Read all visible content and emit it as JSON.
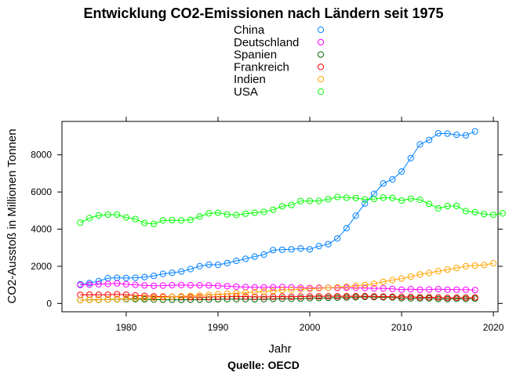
{
  "chart_data": {
    "type": "line",
    "title": "Entwicklung CO2-Emissionen nach Ländern seit 1975",
    "xlabel": "Jahr",
    "ylabel": "CO2-Ausstoß in Millionen Tonnen",
    "caption": "Quelle: OECD",
    "xlim": [
      1973,
      2020.5
    ],
    "ylim": [
      -450,
      9800
    ],
    "x_ticks": [
      1980,
      1990,
      2000,
      2010,
      2020
    ],
    "y_ticks": [
      0,
      2000,
      4000,
      6000,
      8000
    ],
    "x_start": 1975,
    "legend_position": "top-center",
    "grid": false,
    "series": [
      {
        "name": "China",
        "color": "#0080ff",
        "values": [
          1030,
          1100,
          1200,
          1360,
          1380,
          1370,
          1380,
          1420,
          1480,
          1590,
          1650,
          1720,
          1850,
          2000,
          2090,
          2080,
          2170,
          2290,
          2400,
          2520,
          2630,
          2870,
          2890,
          2910,
          2960,
          2910,
          3090,
          3190,
          3500,
          4050,
          4720,
          5380,
          5900,
          6460,
          6680,
          7100,
          7820,
          8560,
          8800,
          9160,
          9140,
          9080,
          9050,
          9260
        ]
      },
      {
        "name": "Deutschland",
        "color": "#ff00ff",
        "values": [
          990,
          1010,
          1030,
          1050,
          1080,
          1030,
          1000,
          970,
          950,
          960,
          980,
          990,
          980,
          980,
          970,
          950,
          930,
          900,
          880,
          860,
          860,
          870,
          880,
          860,
          840,
          830,
          840,
          840,
          830,
          840,
          840,
          820,
          810,
          810,
          780,
          740,
          770,
          740,
          750,
          770,
          740,
          740,
          740,
          720
        ]
      },
      {
        "name": "Spanien",
        "color": "#006400",
        "values": [
          180,
          190,
          200,
          210,
          220,
          230,
          230,
          220,
          210,
          200,
          200,
          190,
          200,
          200,
          210,
          220,
          230,
          230,
          230,
          220,
          230,
          240,
          250,
          250,
          260,
          280,
          290,
          300,
          310,
          320,
          330,
          350,
          340,
          330,
          320,
          280,
          270,
          270,
          270,
          240,
          230,
          250,
          240,
          260
        ]
      },
      {
        "name": "Frankreich",
        "color": "#ff0000",
        "values": [
          460,
          470,
          460,
          470,
          490,
          470,
          430,
          400,
          380,
          370,
          360,
          350,
          340,
          340,
          340,
          360,
          370,
          380,
          370,
          350,
          350,
          360,
          370,
          360,
          370,
          380,
          380,
          390,
          390,
          390,
          390,
          390,
          380,
          370,
          360,
          350,
          350,
          330,
          330,
          320,
          300,
          310,
          310,
          320
        ]
      },
      {
        "name": "Indien",
        "color": "#ffa500",
        "values": [
          180,
          190,
          200,
          210,
          230,
          250,
          270,
          290,
          310,
          330,
          350,
          380,
          400,
          430,
          460,
          490,
          520,
          550,
          580,
          610,
          640,
          680,
          720,
          740,
          760,
          790,
          810,
          840,
          860,
          900,
          940,
          1000,
          1060,
          1160,
          1260,
          1340,
          1440,
          1560,
          1640,
          1740,
          1820,
          1910,
          2000,
          2040,
          2070,
          2160
        ]
      },
      {
        "name": "USA",
        "color": "#00ff00",
        "values": [
          4350,
          4590,
          4740,
          4780,
          4780,
          4630,
          4540,
          4330,
          4280,
          4470,
          4480,
          4470,
          4500,
          4680,
          4850,
          4880,
          4790,
          4760,
          4830,
          4880,
          4930,
          5040,
          5230,
          5300,
          5510,
          5520,
          5520,
          5610,
          5730,
          5690,
          5680,
          5600,
          5620,
          5690,
          5680,
          5540,
          5640,
          5580,
          5360,
          5120,
          5240,
          5250,
          4970,
          4910,
          4810,
          4770,
          4850
        ]
      }
    ]
  }
}
